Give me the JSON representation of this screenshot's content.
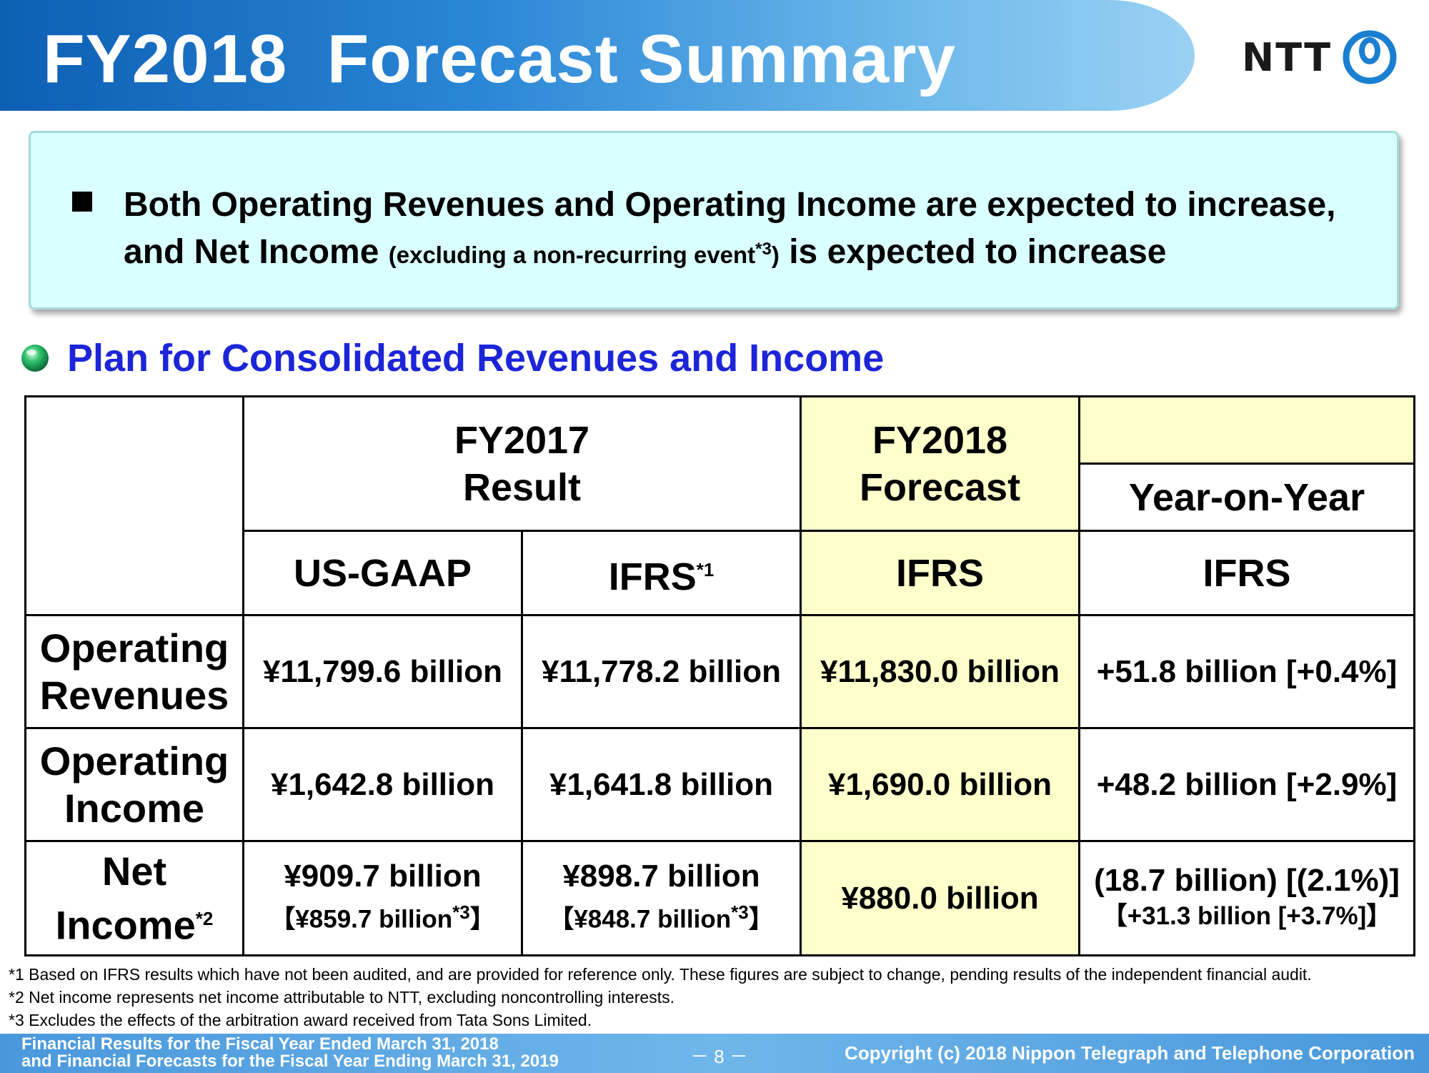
{
  "header": {
    "title": "FY2018  Forecast Summary",
    "logo_text": "NTT",
    "logo_icon": "ntt-circle-logo-icon"
  },
  "summary": {
    "line1": "Both Operating Revenues and Operating Income are expected to increase,",
    "line2_part1": "and Net Income",
    "line2_small": "(excluding a non-recurring event",
    "line2_note": "*3",
    "line2_small_close": ")",
    "line2_part2": "is expected to increase"
  },
  "section": {
    "title": "Plan for Consolidated Revenues and Income",
    "icon": "globe-bullet-icon"
  },
  "table": {
    "fy2017_line1": "FY2017",
    "fy2017_line2": "Result",
    "fy2018_line1": "FY2018",
    "fy2018_line2": "Forecast",
    "yoy": "Year-on-Year",
    "col_usgaap": "US-GAAP",
    "col_ifrs": "IFRS",
    "col_ifrs_note": "*1",
    "col_ifrs_fc": "IFRS",
    "col_ifrs_yoy": "IFRS",
    "rows": [
      {
        "label1": "Operating",
        "label2": "Revenues",
        "usgaap": "¥11,799.6 billion",
        "ifrs": "¥11,778.2 billion",
        "forecast": "¥11,830.0 billion",
        "yoy": "+51.8 billion [+0.4%]"
      },
      {
        "label1": "Operating",
        "label2": "Income",
        "usgaap": "¥1,642.8 billion",
        "ifrs": "¥1,641.8 billion",
        "forecast": "¥1,690.0 billion",
        "yoy": "+48.2 billion [+2.9%]"
      },
      {
        "label1": "Net",
        "label2": "Income",
        "label_note": "*2",
        "usgaap": "¥909.7 billion",
        "usgaap_sub": "【¥859.7 billion",
        "usgaap_sub_close": "】",
        "ifrs": "¥898.7 billion",
        "ifrs_sub": "【¥848.7 billion",
        "ifrs_sub_close": "】",
        "sub_note": "*3",
        "forecast": "¥880.0 billion",
        "yoy": "(18.7 billion) [(2.1%)]",
        "yoy_sub": "【+31.3 billion [+3.7%]】"
      }
    ]
  },
  "footnotes": [
    "*1  Based on IFRS results which have not been audited, and are provided for reference only. These figures are subject to change, pending results of the independent financial audit.",
    " *2  Net income represents net income attributable to NTT, excluding noncontrolling interests.",
    " *3  Excludes the effects of the arbitration award received from Tata Sons Limited."
  ],
  "footer": {
    "left_line1": "Financial Results for the Fiscal Year Ended March 31, 2018",
    "left_line2": "and Financial Forecasts for the Fiscal Year Ending March 31, 2019",
    "page": "－ 8 －",
    "copyright": "Copyright (c) 2018  Nippon Telegraph and Telephone Corporation"
  },
  "colors": {
    "title_blue": "#0d5fb4",
    "section_blue": "#1c25d8",
    "forecast_fill": "#ffffcc",
    "summary_fill": "#d9ffff"
  }
}
